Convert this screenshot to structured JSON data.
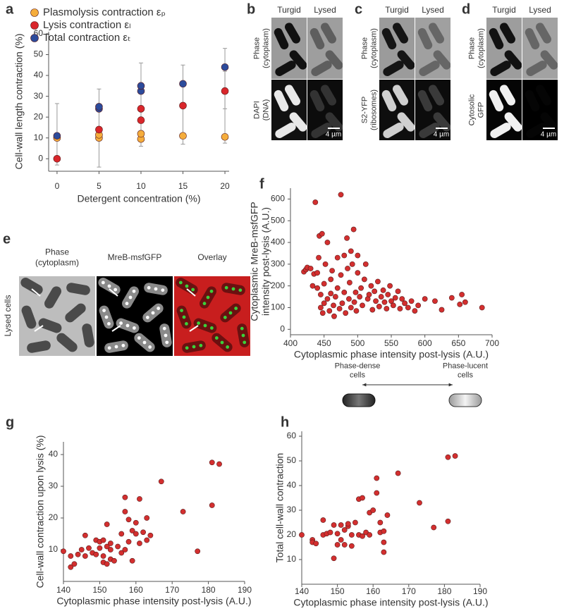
{
  "chart_data": [
    {
      "type": "scatter",
      "panel_label": "a",
      "xlabel": "Detergent concentration (%)",
      "ylabel": "Cell-wall length contraction (%)",
      "xlim": [
        -1,
        20.5
      ],
      "ylim": [
        -6,
        61
      ],
      "xticks": [
        0,
        5,
        10,
        15,
        20
      ],
      "yticks": [
        0,
        10,
        20,
        30,
        40,
        50,
        60
      ],
      "legend": "upper left",
      "error_bars": [
        {
          "x": 0,
          "low": -3,
          "high": 26.5
        },
        {
          "x": 5,
          "low": -4,
          "high": 33.5
        },
        {
          "x": 10,
          "low": 6,
          "high": 46
        },
        {
          "x": 15,
          "low": 7,
          "high": 45
        },
        {
          "x": 20,
          "low": 7.5,
          "high": 53
        },
        {
          "x": 20,
          "low": 24,
          "high": 42
        }
      ],
      "series": [
        {
          "name": "Plasmolysis contraction εₚ",
          "color": "#f5ad3c",
          "x": [
            0,
            5,
            5,
            10,
            10,
            15,
            20
          ],
          "values": [
            10,
            10,
            11.5,
            9.5,
            12,
            11,
            10.5
          ]
        },
        {
          "name": "Lysis contraction εₗ",
          "color": "#d9262b",
          "x": [
            0,
            5,
            10,
            10,
            15,
            20
          ],
          "values": [
            0,
            14,
            18.5,
            24,
            25.5,
            32.5
          ]
        },
        {
          "name": "Total contraction εₜ",
          "color": "#2c4b9b",
          "x": [
            0,
            5,
            5,
            10,
            10,
            15,
            20
          ],
          "values": [
            11,
            24,
            25,
            32.5,
            35,
            36,
            44
          ]
        }
      ]
    },
    {
      "type": "scatter",
      "panel_label": "f",
      "xlabel": "Cytoplasmic phase intensity post-lysis (A.U.)",
      "ylabel": [
        "Cytoplasmic MreB-msfGFP",
        "intensity post-lysis (A.U.)"
      ],
      "xlim": [
        400,
        700
      ],
      "ylim": [
        -25,
        650
      ],
      "xticks": [
        400,
        450,
        500,
        550,
        600,
        650,
        700
      ],
      "yticks": [
        0,
        100,
        200,
        300,
        400,
        500,
        600
      ],
      "color": "#d32f2f",
      "x": [
        420,
        423,
        425,
        430,
        433,
        435,
        437,
        440,
        440,
        442,
        443,
        445,
        445,
        447,
        448,
        450,
        450,
        452,
        455,
        455,
        458,
        460,
        460,
        462,
        464,
        465,
        467,
        470,
        470,
        473,
        475,
        475,
        477,
        480,
        480,
        482,
        484,
        485,
        487,
        488,
        490,
        490,
        492,
        494,
        495,
        497,
        498,
        500,
        500,
        503,
        505,
        507,
        510,
        512,
        515,
        517,
        520,
        522,
        525,
        527,
        530,
        532,
        535,
        538,
        540,
        543,
        545,
        548,
        550,
        553,
        556,
        560,
        563,
        566,
        570,
        575,
        580,
        585,
        590,
        600,
        615,
        625,
        640,
        652,
        655,
        660,
        685
      ],
      "values": [
        265,
        275,
        285,
        280,
        200,
        255,
        585,
        260,
        190,
        330,
        430,
        100,
        160,
        440,
        75,
        120,
        210,
        300,
        400,
        140,
        85,
        165,
        230,
        270,
        110,
        60,
        150,
        330,
        190,
        95,
        620,
        250,
        120,
        340,
        170,
        75,
        420,
        280,
        140,
        215,
        100,
        360,
        300,
        460,
        125,
        170,
        85,
        260,
        340,
        150,
        190,
        110,
        230,
        300,
        140,
        160,
        200,
        90,
        175,
        130,
        220,
        105,
        150,
        180,
        125,
        95,
        160,
        200,
        130,
        110,
        145,
        175,
        95,
        140,
        120,
        100,
        130,
        85,
        110,
        140,
        130,
        90,
        145,
        115,
        160,
        125,
        100
      ]
    },
    {
      "type": "scatter",
      "panel_label": "g",
      "xlabel": "Cytoplasmic phase intensity post-lysis (A.U.)",
      "ylabel": "Cell-wall contraction upon lysis (%)",
      "xlim": [
        140,
        190
      ],
      "ylim": [
        0,
        44
      ],
      "xticks": [
        140,
        150,
        160,
        170,
        180,
        190
      ],
      "yticks": [
        10,
        20,
        30,
        40
      ],
      "color": "#d32f2f",
      "x": [
        140,
        142,
        142,
        143,
        144,
        145,
        146,
        146,
        147,
        148,
        149,
        149,
        150,
        150,
        151,
        151,
        151,
        152,
        152,
        152,
        153,
        153,
        153,
        154,
        155,
        156,
        156,
        157,
        157,
        157,
        158,
        158,
        159,
        159,
        160,
        160,
        161,
        161,
        162,
        163,
        163,
        164,
        167,
        173,
        177,
        181,
        181,
        183
      ],
      "values": [
        9.5,
        8,
        4.5,
        5.5,
        8.5,
        10,
        8,
        14.5,
        10.5,
        9,
        8.5,
        13,
        10.5,
        12.5,
        6,
        8,
        13,
        5.5,
        11,
        18,
        7,
        10,
        12,
        6.5,
        11,
        9,
        15,
        26.5,
        22,
        10,
        19.5,
        12.5,
        16,
        6.5,
        15,
        18.5,
        26,
        12,
        15.5,
        20,
        13,
        14.5,
        31.5,
        22,
        9.5,
        37.5,
        24,
        37
      ]
    },
    {
      "type": "scatter",
      "panel_label": "h",
      "xlabel": "Cytoplasmic phase intensity post-lysis (A.U.)",
      "ylabel": "Total cell-wall contraction",
      "xlim": [
        140,
        190
      ],
      "ylim": [
        0,
        62
      ],
      "xticks": [
        140,
        150,
        160,
        170,
        180,
        190
      ],
      "yticks": [
        10,
        20,
        30,
        40,
        50,
        60
      ],
      "color": "#d32f2f",
      "x": [
        140,
        143,
        143,
        144,
        146,
        146,
        147,
        148,
        149,
        149,
        150,
        150,
        151,
        151,
        152,
        152,
        153,
        153,
        154,
        154,
        155,
        156,
        156,
        157,
        157,
        158,
        159,
        159,
        160,
        161,
        161,
        162,
        162,
        163,
        163,
        163,
        164,
        167,
        173,
        177,
        181,
        181,
        183
      ],
      "values": [
        20,
        18,
        17,
        16.5,
        20,
        26,
        20.5,
        21,
        24,
        10.5,
        16,
        20.5,
        24,
        18,
        22,
        16,
        23.5,
        24.5,
        15.5,
        20,
        25,
        34.5,
        20,
        35,
        19.5,
        21,
        29,
        20,
        30,
        37,
        43,
        25,
        21,
        17,
        21.5,
        13,
        28,
        45,
        33,
        23,
        51.5,
        25.5,
        52
      ]
    }
  ],
  "image_panels": [
    {
      "panel_label": "b",
      "column_titles": [
        "Turgid",
        "Lysed"
      ],
      "row_labels": [
        [
          "Phase",
          "(cytoplasm)"
        ],
        [
          "DAPI",
          "(DNA)"
        ]
      ],
      "scale_bar": "4 µm"
    },
    {
      "panel_label": "c",
      "column_titles": [
        "Turgid",
        "Lysed"
      ],
      "row_labels": [
        [
          "Phase",
          "(cytoplasm)"
        ],
        [
          "S2-YFP",
          "(ribosomes)"
        ]
      ],
      "scale_bar": "4 µm"
    },
    {
      "panel_label": "d",
      "column_titles": [
        "Turgid",
        "Lysed"
      ],
      "row_labels": [
        [
          "Phase",
          "(cytoplasm)"
        ],
        [
          "Cytosolic",
          "GFP"
        ]
      ],
      "scale_bar": "4 µm"
    }
  ],
  "panel_e": {
    "panel_label": "e",
    "column_titles": [
      [
        "Phase",
        "(cytoplasm)"
      ],
      [
        "MreB-msfGFP"
      ],
      [
        "Overlay"
      ]
    ],
    "row_label": "Lysed cells"
  },
  "phase_diagram": {
    "left": [
      "Phase-dense",
      "cells"
    ],
    "right": [
      "Phase-lucent",
      "cells"
    ]
  }
}
